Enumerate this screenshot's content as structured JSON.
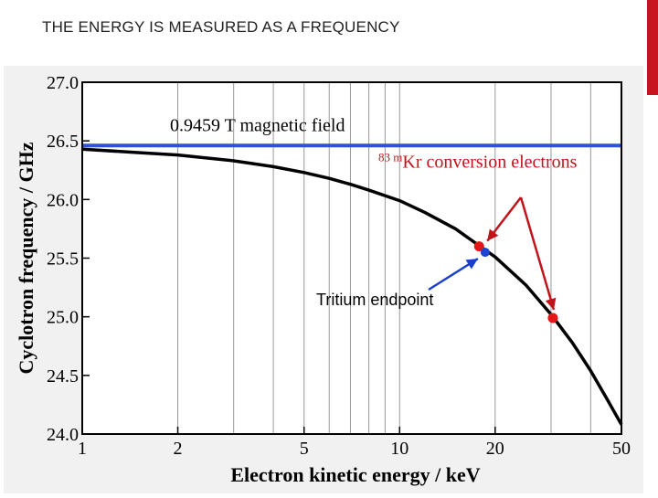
{
  "slide": {
    "title": "THE ENERGY IS MEASURED AS A FREQUENCY"
  },
  "colors": {
    "accent": "#c8141e",
    "curve": "#000000",
    "field_line": "#2a55d6",
    "kr_marker": "#e21818",
    "tritium_marker": "#1e44d4",
    "grid": "#999999",
    "frame": "#000000",
    "panel_shade": "#f1f1f1"
  },
  "chart_data": {
    "type": "line",
    "title": "",
    "xlabel": "Electron kinetic energy / keV",
    "ylabel": "Cyclotron frequency / GHz",
    "xscale": "log",
    "xlim": [
      1,
      50
    ],
    "ylim": [
      24.0,
      27.0
    ],
    "x_ticks": [
      1,
      2,
      5,
      10,
      20,
      50
    ],
    "x_tick_labels": [
      "1",
      "2",
      "5",
      "10",
      "20",
      "50"
    ],
    "x_minor_grid": [
      3,
      4,
      6,
      7,
      8,
      9,
      30,
      40
    ],
    "y_ticks": [
      24.0,
      24.5,
      25.0,
      25.5,
      26.0,
      26.5,
      27.0
    ],
    "y_tick_labels": [
      "24.0",
      "24.5",
      "25.0",
      "25.5",
      "26.0",
      "26.5",
      "27.0"
    ],
    "grid": true,
    "series": [
      {
        "name": "Cyclotron frequency",
        "type": "line",
        "x": [
          1,
          1.5,
          2,
          3,
          4,
          5,
          6,
          7,
          8,
          10,
          12,
          15,
          18.6,
          20,
          25,
          30,
          35,
          40,
          45,
          50
        ],
        "y": [
          26.43,
          26.4,
          26.38,
          26.33,
          26.28,
          26.23,
          26.18,
          26.13,
          26.08,
          25.99,
          25.89,
          25.75,
          25.57,
          25.51,
          25.27,
          25.02,
          24.78,
          24.54,
          24.3,
          24.08
        ]
      }
    ],
    "reference_line": {
      "label": "0.9459 T magnetic field",
      "y": 26.46
    },
    "points": [
      {
        "name": "83mKr conversion electron (17.8 keV)",
        "x": 17.8,
        "y": 25.6
      },
      {
        "name": "83mKr conversion electron (30.4 keV)",
        "x": 30.4,
        "y": 24.99
      },
      {
        "name": "Tritium endpoint",
        "x": 18.6,
        "y": 25.55
      }
    ],
    "annotations": {
      "field_label": "0.9459 T magnetic field",
      "kr_label_prefix": "83 m",
      "kr_label_text": "Kr conversion electrons",
      "tritium_label": "Tritium endpoint"
    }
  }
}
